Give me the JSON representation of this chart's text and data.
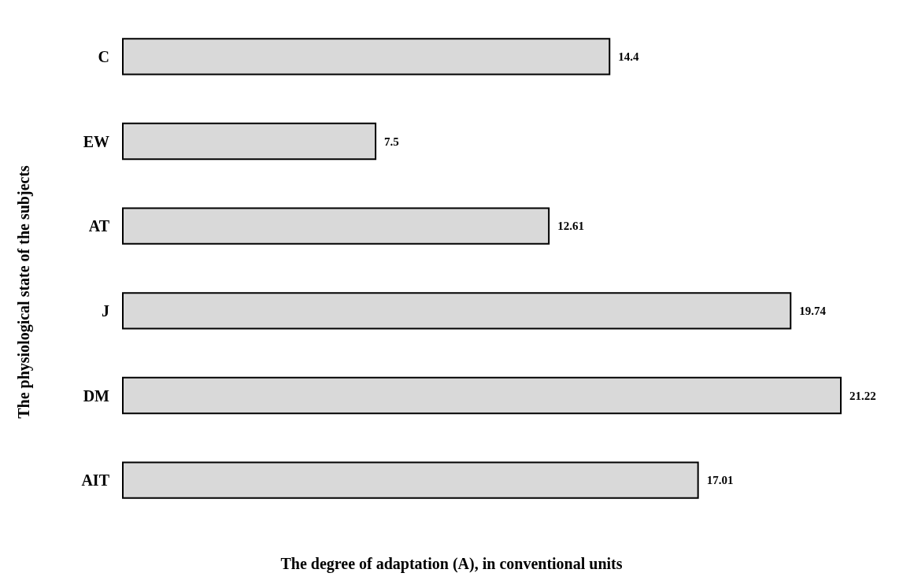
{
  "chart_data": {
    "type": "bar",
    "orientation": "horizontal",
    "xlabel": "The degree of adaptation (A), in conventional units",
    "ylabel": "The physiological state of the subjects",
    "categories": [
      "C",
      "EW",
      "AT",
      "J",
      "DM",
      "AIT"
    ],
    "values": [
      14.4,
      7.5,
      12.61,
      19.74,
      21.22,
      17.01
    ],
    "color": "#d9d9d9",
    "data_labels": true
  }
}
